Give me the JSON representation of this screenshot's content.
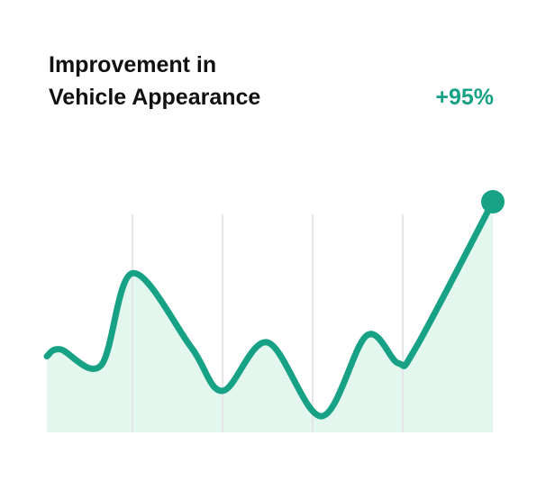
{
  "chart_data": {
    "type": "line",
    "title_lines": [
      "Improvement in",
      "Vehicle Appearance"
    ],
    "annotation": "+95%",
    "x": [
      1,
      4,
      13,
      20,
      33,
      40,
      50,
      62,
      72,
      79,
      83,
      100
    ],
    "series": [
      {
        "color": "#17a185",
        "values": [
          33,
          36,
          29,
          69,
          37,
          18,
          39,
          7,
          42,
          30,
          37,
          100
        ]
      }
    ],
    "fill_color": "#e4f7ef",
    "xlim": [
      0,
      100
    ],
    "ylim": [
      0,
      100
    ],
    "xticks": [
      20,
      40,
      60,
      80
    ],
    "grid": true
  }
}
